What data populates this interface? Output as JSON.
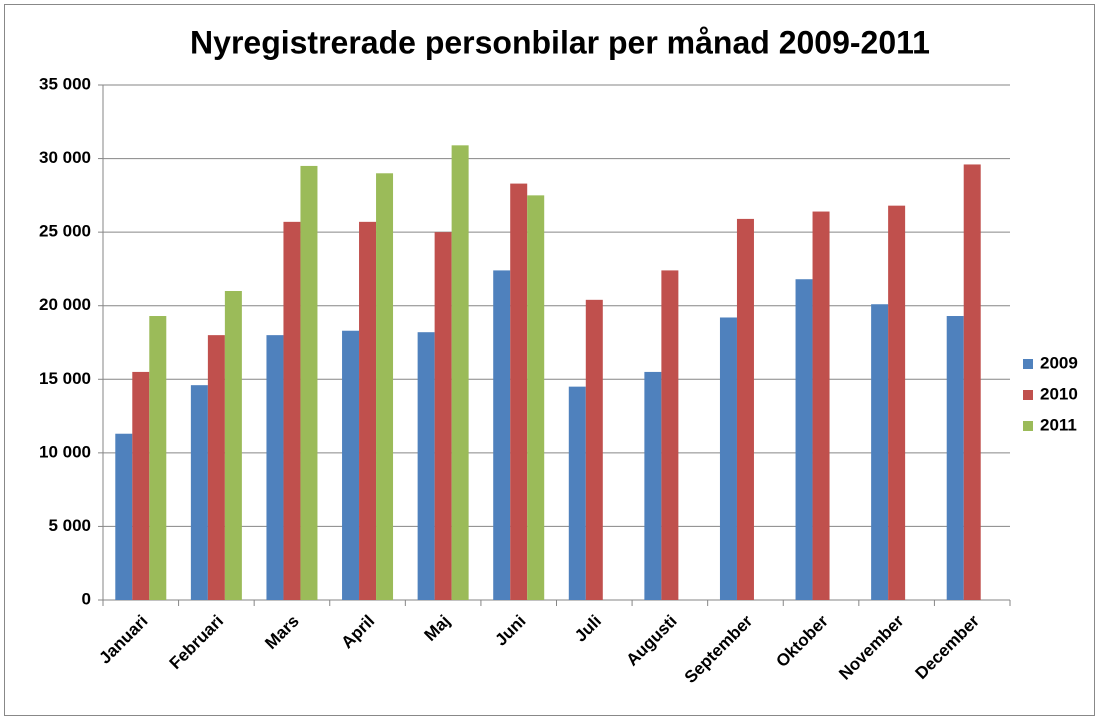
{
  "chart_data": {
    "type": "bar",
    "title": "Nyregistrerade personbilar per månad 2009-2011",
    "categories": [
      "Januari",
      "Februari",
      "Mars",
      "April",
      "Maj",
      "Juni",
      "Juli",
      "Augusti",
      "September",
      "Oktober",
      "November",
      "December"
    ],
    "series": [
      {
        "name": "2009",
        "color": "#4f81bd",
        "values": [
          11300,
          14600,
          18000,
          18300,
          18200,
          22400,
          14500,
          15500,
          19200,
          21800,
          20100,
          19300
        ]
      },
      {
        "name": "2010",
        "color": "#c0504d",
        "values": [
          15500,
          18000,
          25700,
          25700,
          25000,
          28300,
          20400,
          22400,
          25900,
          26400,
          26800,
          29600
        ]
      },
      {
        "name": "2011",
        "color": "#9bbb59",
        "values": [
          19300,
          21000,
          29500,
          29000,
          30900,
          27500,
          null,
          null,
          null,
          null,
          null,
          null
        ]
      }
    ],
    "ylim": [
      0,
      35000
    ],
    "yticks": [
      0,
      {
        "value": 5000,
        "label": "5 000"
      },
      {
        "value": 10000,
        "label": "10 000"
      },
      {
        "value": 15000,
        "label": "15 000"
      },
      {
        "value": 20000,
        "label": "20 000"
      },
      {
        "value": 25000,
        "label": "25 000"
      },
      {
        "value": 30000,
        "label": "30 000"
      },
      {
        "value": 35000,
        "label": "35 000"
      }
    ],
    "grid": true,
    "legend": "right"
  }
}
